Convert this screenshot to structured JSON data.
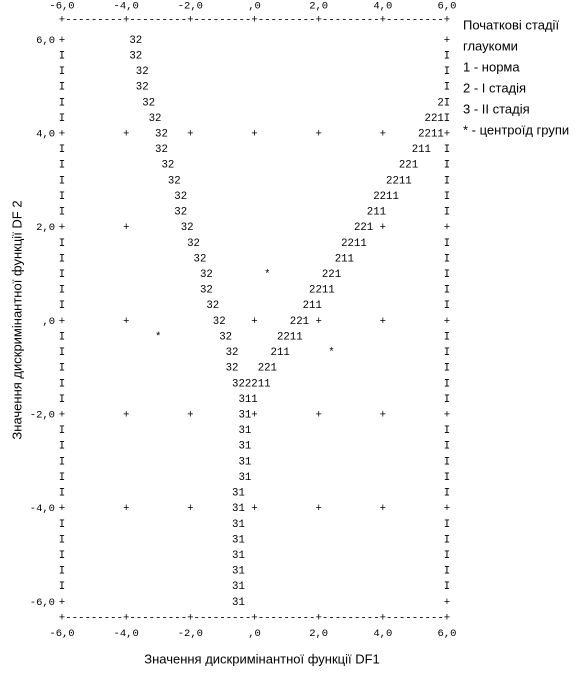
{
  "chart_data": {
    "type": "territorial-map",
    "x_label": "Значення дискримінантної функції DF1",
    "y_label": "Значення дискримінантної функції DF 2",
    "legend_title": [
      "Початкові стадії",
      "глаукоми"
    ],
    "legend_items": [
      "1 - норма",
      "2 - І стадія",
      "3 - ІІ стадія",
      "* - центроїд групи"
    ],
    "xlim": [
      -6,
      6
    ],
    "ylim": [
      -6,
      6
    ],
    "xticks": [
      {
        "value": -6,
        "label": "-6,0"
      },
      {
        "value": -4,
        "label": "-4,0"
      },
      {
        "value": -2,
        "label": "-2,0"
      },
      {
        "value": 0,
        "label": ",0"
      },
      {
        "value": 2,
        "label": "2,0"
      },
      {
        "value": 4,
        "label": "4,0"
      },
      {
        "value": 6,
        "label": "6,0"
      }
    ],
    "yticks": [
      {
        "value": 6,
        "label": "6,0"
      },
      {
        "value": 4,
        "label": "4,0"
      },
      {
        "value": 2,
        "label": "2,0"
      },
      {
        "value": 0,
        "label": ",0"
      },
      {
        "value": -2,
        "label": "-2,0"
      },
      {
        "value": -4,
        "label": "-4,0"
      },
      {
        "value": -6,
        "label": "-6,0"
      }
    ],
    "border": "+---------+---------+---------+---------+---------+---------+",
    "map_rows": [
      "+          32                                               +",
      "I          32                                               I",
      "I           32                                              I",
      "I           32                                              I",
      "I            32                                            2I",
      "I             32                                         221I",
      "+         +    32   +         +         +         +     2211+",
      "I              32                                      211  I",
      "I               32                                   221    I",
      "I                32                                2211     I",
      "I                 32                             2211       I",
      "I                 32                            211         I",
      "+         +        32                         221 +         +",
      "I                   32                      2211            I",
      "I                    32                    211              I",
      "I                     32        *        221                I",
      "I                     32               2211                 I",
      "I                      32             211                   I",
      "+         +             32    +     221 +         +         +",
      "I              *         32       2211                      I",
      "I                         32     211      *                 I",
      "I                         32   221                          I",
      "I                          322211                           I",
      "I                           311                             I",
      "+         +         +       31+         +         +         +",
      "I                           31                              I",
      "I                           31                              I",
      "I                           31                              I",
      "I                           31                              I",
      "I                          31                               I",
      "+         +         +      31 +         +         +         +",
      "I                          31                               I",
      "I                          31                               I",
      "I                          31                               I",
      "I                          31                               I",
      "I                          31                               I",
      "+                          31                               +"
    ]
  }
}
